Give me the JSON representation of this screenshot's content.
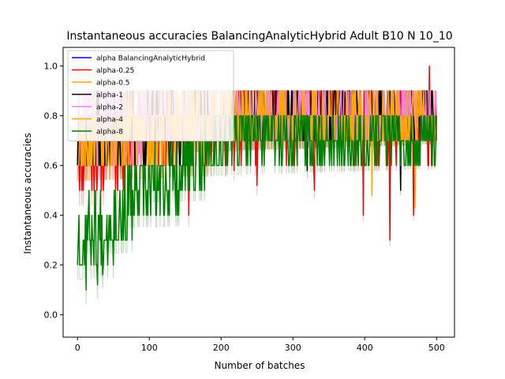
{
  "chart_data": {
    "type": "line",
    "title": "Instantaneous accuracies BalancingAnalyticHybrid Adult B10 N 10_10",
    "xlabel": "Number of batches",
    "ylabel": "Instantaneous accuracies",
    "xlim": [
      -20,
      525
    ],
    "ylim": [
      -0.09,
      1.075
    ],
    "xticks": [
      0,
      100,
      200,
      300,
      400,
      500
    ],
    "yticks": [
      0.0,
      0.2,
      0.4,
      0.6,
      0.8,
      1.0
    ],
    "xtick_labels": [
      "0",
      "100",
      "200",
      "300",
      "400",
      "500"
    ],
    "ytick_labels": [
      "0.0",
      "0.2",
      "0.4",
      "0.6",
      "0.8",
      "1.0"
    ],
    "grid": false,
    "legend_position": "top-left",
    "legend": [
      {
        "label": "alpha BalancingAnalyticHybrid",
        "color": "#0000ff"
      },
      {
        "label": "alpha-0.25",
        "color": "#ff0000"
      },
      {
        "label": "alpha-0.5",
        "color": "#ffa500"
      },
      {
        "label": "alpha-1",
        "color": "#000000"
      },
      {
        "label": "alpha-2",
        "color": "#ee82ee"
      },
      {
        "label": "alpha-4",
        "color": "#ffa500"
      },
      {
        "label": "alpha-8",
        "color": "#008000"
      }
    ],
    "series": [
      {
        "name": "alpha-0.25",
        "color": "#ff0000",
        "base": 0.78,
        "amp": 0.16,
        "lo": 0.3,
        "hi": 1.0,
        "early": 0.68,
        "seed": 11,
        "spikes": [
          [
            155,
            0.4
          ],
          [
            218,
            0.58
          ],
          [
            398,
            0.4
          ],
          [
            435,
            0.3
          ],
          [
            468,
            0.4
          ],
          [
            490,
            1.0
          ],
          [
            250,
            0.52
          ],
          [
            330,
            0.5
          ]
        ]
      },
      {
        "name": "alpha-0.5",
        "color": "#ffa500",
        "base": 0.78,
        "amp": 0.14,
        "lo": 0.43,
        "hi": 1.0,
        "early": 0.7,
        "seed": 23,
        "spikes": [
          [
            470,
            0.43
          ],
          [
            410,
            0.48
          ]
        ]
      },
      {
        "name": "alpha-1",
        "color": "#000000",
        "base": 0.8,
        "amp": 0.14,
        "lo": 0.45,
        "hi": 1.0,
        "early": 0.72,
        "seed": 37,
        "spikes": [
          [
            320,
            0.58
          ],
          [
            450,
            0.5
          ]
        ]
      },
      {
        "name": "alpha-2",
        "color": "#ee82ee",
        "base": 0.8,
        "amp": 0.13,
        "lo": 0.5,
        "hi": 1.0,
        "early": 0.75,
        "seed": 41,
        "spikes": []
      },
      {
        "name": "alpha-4",
        "color": "#ffa500",
        "base": 0.78,
        "amp": 0.13,
        "lo": 0.43,
        "hi": 1.0,
        "early": 0.72,
        "seed": 53,
        "spikes": []
      },
      {
        "name": "alpha-8",
        "color": "#008000",
        "base": 0.72,
        "amp": 0.14,
        "lo": 0.1,
        "hi": 1.0,
        "early": 0.3,
        "seed": 67,
        "spikes": [
          [
            5,
            0.2
          ],
          [
            12,
            0.1
          ],
          [
            28,
            0.12
          ],
          [
            35,
            0.16
          ]
        ]
      }
    ],
    "x_range": [
      0,
      500
    ]
  }
}
